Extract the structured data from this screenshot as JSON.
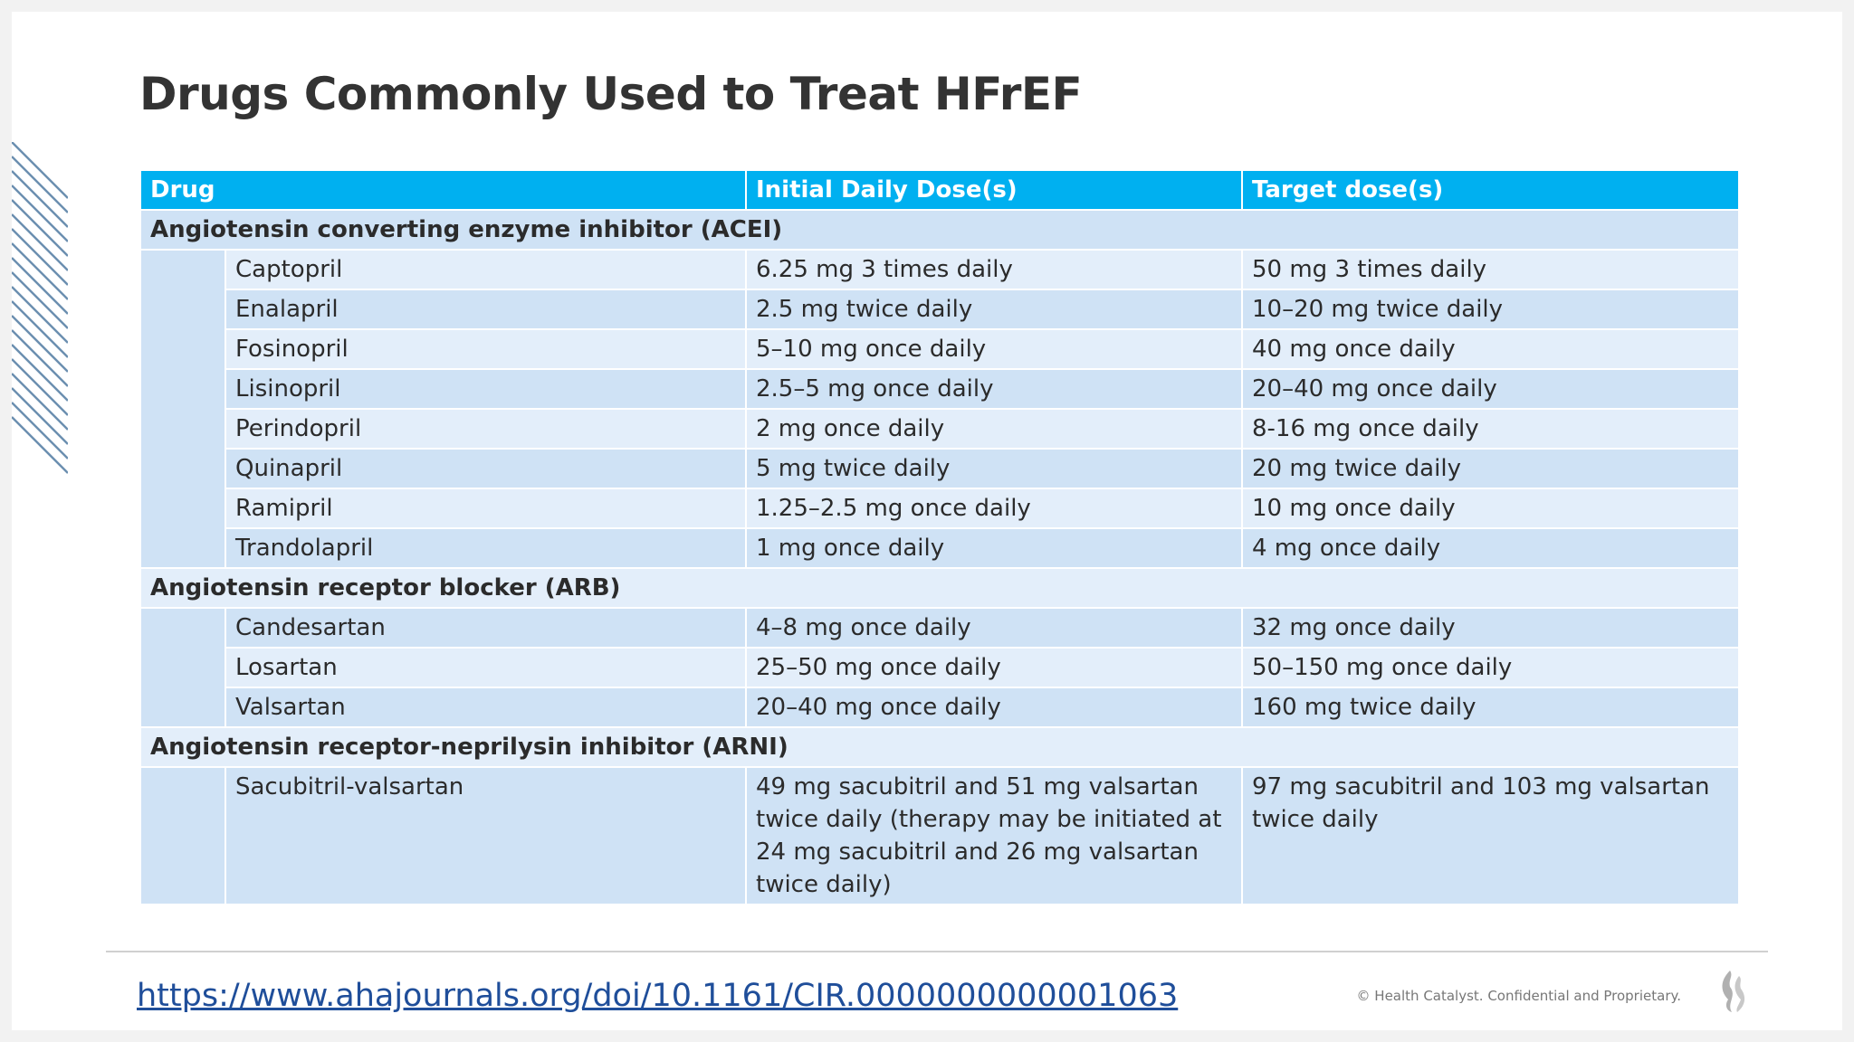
{
  "header": {
    "title": "Drugs Commonly Used to Treat HFrEF"
  },
  "table": {
    "columns": [
      "Drug",
      "Initial Daily Dose(s)",
      "Target dose(s)"
    ],
    "groups": [
      {
        "label": "Angiotensin converting enzyme inhibitor (ACEI)",
        "rows": [
          [
            "Captopril",
            "6.25 mg 3 times daily",
            "50 mg 3 times daily"
          ],
          [
            "Enalapril",
            "2.5 mg twice daily",
            "10–20 mg twice daily"
          ],
          [
            "Fosinopril",
            "5–10 mg once daily",
            "40 mg once daily"
          ],
          [
            "Lisinopril",
            "2.5–5 mg once daily",
            "20–40 mg once daily"
          ],
          [
            "Perindopril",
            "2 mg once daily",
            "8-16 mg once daily"
          ],
          [
            "Quinapril",
            "5 mg twice daily",
            "20 mg twice daily"
          ],
          [
            "Ramipril",
            "1.25–2.5 mg once daily",
            "10 mg once daily"
          ],
          [
            "Trandolapril",
            "1 mg once daily",
            "4 mg once daily"
          ]
        ]
      },
      {
        "label": "Angiotensin receptor blocker (ARB)",
        "rows": [
          [
            "Candesartan",
            "4–8 mg once daily",
            "32 mg once daily"
          ],
          [
            "Losartan",
            "25–50 mg once daily",
            "50–150 mg once daily"
          ],
          [
            "Valsartan",
            "20–40 mg once daily",
            "160 mg twice daily"
          ]
        ]
      },
      {
        "label": "Angiotensin receptor-neprilysin inhibitor (ARNI)",
        "rows": [
          [
            "Sacubitril-valsartan",
            "49 mg sacubitril and 51 mg valsartan twice daily (therapy may be initiated at 24 mg sacubitril and 26 mg valsartan twice daily)",
            "97 mg sacubitril and 103 mg valsartan twice daily"
          ]
        ]
      }
    ]
  },
  "footer": {
    "link": "https://www.ahajournals.org/doi/10.1161/CIR.0000000000001063",
    "copyright": "© Health Catalyst. Confidential and Proprietary."
  }
}
